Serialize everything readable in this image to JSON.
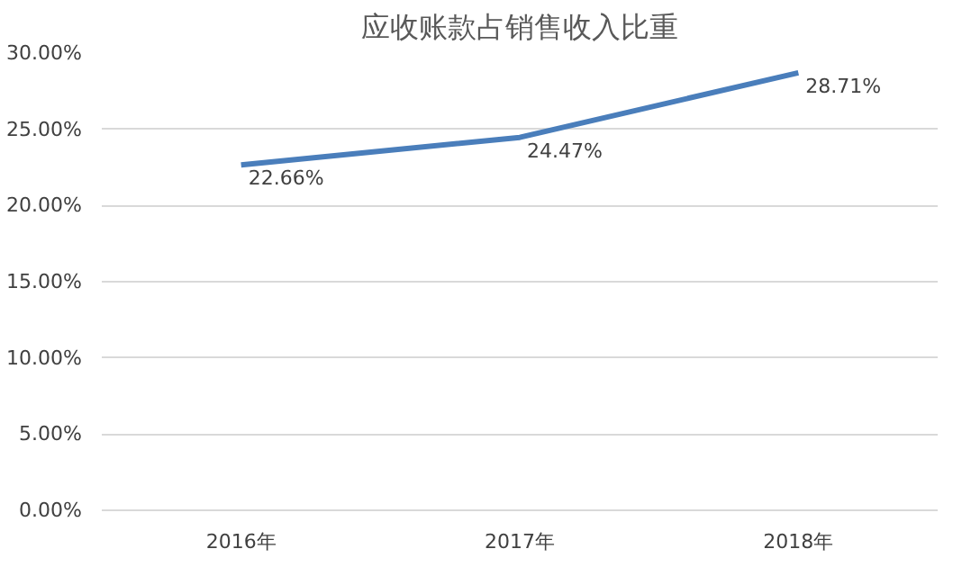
{
  "chart_data": {
    "type": "line",
    "title": "应收账款占销售收入比重",
    "categories": [
      "2016年",
      "2017年",
      "2018年"
    ],
    "series": [
      {
        "color": "#4a7ebb",
        "values": [
          22.66,
          24.47,
          28.71
        ],
        "value_labels": [
          "22.66%",
          "24.47%",
          "28.71%"
        ]
      }
    ],
    "ylim": [
      0,
      30
    ],
    "yticks": [
      {
        "value": 0,
        "label": "0.00%"
      },
      {
        "value": 5,
        "label": "5.00%"
      },
      {
        "value": 10,
        "label": "10.00%"
      },
      {
        "value": 15,
        "label": "15.00%"
      },
      {
        "value": 20,
        "label": "20.00%"
      },
      {
        "value": 25,
        "label": "25.00%"
      },
      {
        "value": 30,
        "label": "30.00%"
      }
    ],
    "grid": "y",
    "marker": "none",
    "line_style": "solid"
  }
}
